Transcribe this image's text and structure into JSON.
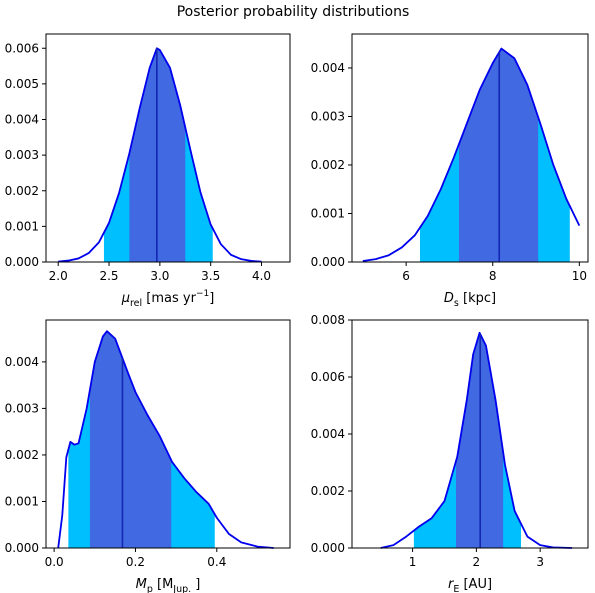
{
  "title": "Posterior probability distributions",
  "colors": {
    "curve": "#0000ee",
    "outer_band": "#00bfff",
    "inner_band": "#4169e1",
    "median_line": "#1428b4"
  },
  "chart_data": [
    {
      "type": "area",
      "id": "mu_rel",
      "xlabel": {
        "main": "μ",
        "sub": "rel",
        "rest": " [mas yr",
        "sup": "−1",
        "tail": "]"
      },
      "xlim": [
        1.88,
        4.28
      ],
      "ylim": [
        0,
        0.0064
      ],
      "xticks": [
        2.0,
        2.5,
        3.0,
        3.5,
        4.0
      ],
      "xtick_labels": [
        "2.0",
        "2.5",
        "3.0",
        "3.5",
        "4.0"
      ],
      "yticks": [
        0,
        0.001,
        0.002,
        0.003,
        0.004,
        0.005,
        0.006
      ],
      "ytick_labels": [
        "0.000",
        "0.001",
        "0.002",
        "0.003",
        "0.004",
        "0.005",
        "0.006"
      ],
      "median": 2.97,
      "inner_band": [
        2.7,
        3.25
      ],
      "outer_band": [
        2.45,
        3.52
      ],
      "curve": [
        [
          2.0,
          1e-05
        ],
        [
          2.1,
          4e-05
        ],
        [
          2.2,
          0.0001
        ],
        [
          2.3,
          0.00025
        ],
        [
          2.4,
          0.00055
        ],
        [
          2.5,
          0.0011
        ],
        [
          2.6,
          0.00195
        ],
        [
          2.7,
          0.00305
        ],
        [
          2.8,
          0.0043
        ],
        [
          2.9,
          0.00545
        ],
        [
          2.97,
          0.006
        ],
        [
          3.0,
          0.00595
        ],
        [
          3.1,
          0.00545
        ],
        [
          3.2,
          0.0044
        ],
        [
          3.3,
          0.00315
        ],
        [
          3.4,
          0.00195
        ],
        [
          3.5,
          0.00105
        ],
        [
          3.6,
          0.0005
        ],
        [
          3.7,
          0.0002
        ],
        [
          3.8,
          8e-05
        ],
        [
          3.9,
          3e-05
        ],
        [
          4.0,
          1e-05
        ]
      ]
    },
    {
      "type": "area",
      "id": "D_s",
      "xlabel": {
        "main": "D",
        "sub": "s",
        "rest": " [kpc]",
        "sup": "",
        "tail": ""
      },
      "xlim": [
        4.75,
        10.2
      ],
      "ylim": [
        0,
        0.0047
      ],
      "xticks": [
        6,
        8,
        10
      ],
      "xtick_labels": [
        "6",
        "8",
        "10"
      ],
      "yticks": [
        0,
        0.001,
        0.002,
        0.003,
        0.004
      ],
      "ytick_labels": [
        "0.000",
        "0.001",
        "0.002",
        "0.003",
        "0.004"
      ],
      "median": 8.15,
      "inner_band": [
        7.22,
        9.05
      ],
      "outer_band": [
        6.32,
        9.78
      ],
      "curve": [
        [
          5.0,
          2e-05
        ],
        [
          5.3,
          6e-05
        ],
        [
          5.6,
          0.00014
        ],
        [
          5.9,
          0.0003
        ],
        [
          6.2,
          0.00055
        ],
        [
          6.5,
          0.00095
        ],
        [
          6.8,
          0.0015
        ],
        [
          7.1,
          0.00215
        ],
        [
          7.4,
          0.00285
        ],
        [
          7.7,
          0.00355
        ],
        [
          8.0,
          0.0041
        ],
        [
          8.2,
          0.0044
        ],
        [
          8.5,
          0.0042
        ],
        [
          8.8,
          0.00365
        ],
        [
          9.1,
          0.00285
        ],
        [
          9.4,
          0.002
        ],
        [
          9.7,
          0.0013
        ],
        [
          10.0,
          0.00075
        ]
      ]
    },
    {
      "type": "area",
      "id": "M_p",
      "xlabel": {
        "main": "M",
        "sub": "p",
        "rest": " [M",
        "sup": "",
        "tail": "]",
        "sub2": "Jup."
      },
      "xlim": [
        -0.02,
        0.58
      ],
      "ylim": [
        0,
        0.0049
      ],
      "xticks": [
        0.0,
        0.2,
        0.4
      ],
      "xtick_labels": [
        "0.0",
        "0.2",
        "0.4"
      ],
      "yticks": [
        0,
        0.001,
        0.002,
        0.003,
        0.004
      ],
      "ytick_labels": [
        "0.000",
        "0.001",
        "0.002",
        "0.003",
        "0.004"
      ],
      "median": 0.168,
      "inner_band": [
        0.088,
        0.288
      ],
      "outer_band": [
        0.035,
        0.395
      ],
      "curve": [
        [
          0.01,
          0.0
        ],
        [
          0.02,
          0.0007
        ],
        [
          0.03,
          0.00195
        ],
        [
          0.04,
          0.00228
        ],
        [
          0.05,
          0.00222
        ],
        [
          0.06,
          0.00225
        ],
        [
          0.08,
          0.003
        ],
        [
          0.1,
          0.004
        ],
        [
          0.12,
          0.00455
        ],
        [
          0.13,
          0.00466
        ],
        [
          0.15,
          0.0045
        ],
        [
          0.18,
          0.0038
        ],
        [
          0.2,
          0.00335
        ],
        [
          0.23,
          0.00285
        ],
        [
          0.26,
          0.0024
        ],
        [
          0.29,
          0.00185
        ],
        [
          0.32,
          0.0015
        ],
        [
          0.35,
          0.0012
        ],
        [
          0.38,
          0.00095
        ],
        [
          0.4,
          0.00065
        ],
        [
          0.43,
          0.0003
        ],
        [
          0.46,
          0.00012
        ],
        [
          0.5,
          3e-05
        ],
        [
          0.54,
          0.0
        ]
      ]
    },
    {
      "type": "area",
      "id": "r_E",
      "xlabel": {
        "main": "r",
        "sub": "E",
        "rest": " [AU]",
        "sup": "",
        "tail": ""
      },
      "xlim": [
        0.05,
        3.75
      ],
      "ylim": [
        0,
        0.008
      ],
      "xticks": [
        1,
        2,
        3
      ],
      "xtick_labels": [
        "1",
        "2",
        "3"
      ],
      "yticks": [
        0,
        0.002,
        0.004,
        0.006,
        0.008
      ],
      "ytick_labels": [
        "0.000",
        "0.002",
        "0.004",
        "0.006",
        "0.008"
      ],
      "median": 2.06,
      "inner_band": [
        1.68,
        2.42
      ],
      "outer_band": [
        1.02,
        2.7
      ],
      "curve": [
        [
          0.5,
          0.0
        ],
        [
          0.7,
          0.0001
        ],
        [
          0.9,
          0.0004
        ],
        [
          1.1,
          0.00075
        ],
        [
          1.3,
          0.00105
        ],
        [
          1.5,
          0.00165
        ],
        [
          1.7,
          0.0032
        ],
        [
          1.85,
          0.0052
        ],
        [
          1.95,
          0.0068
        ],
        [
          2.05,
          0.00755
        ],
        [
          2.15,
          0.0071
        ],
        [
          2.3,
          0.0052
        ],
        [
          2.45,
          0.0029
        ],
        [
          2.6,
          0.0013
        ],
        [
          2.8,
          0.0004
        ],
        [
          3.0,
          0.0001
        ],
        [
          3.2,
          2e-05
        ],
        [
          3.5,
          0.0
        ]
      ]
    }
  ]
}
